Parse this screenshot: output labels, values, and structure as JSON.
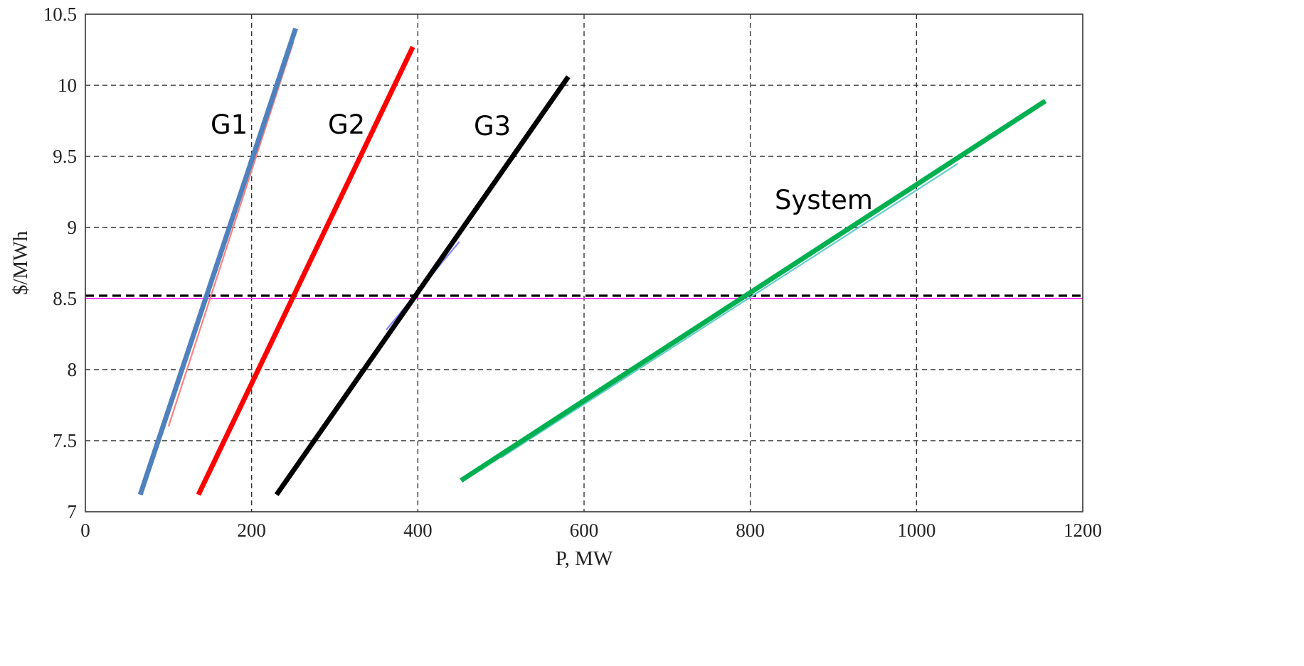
{
  "chart_data": {
    "type": "line",
    "title": "",
    "xlabel": "P, MW",
    "ylabel": "$/MWh",
    "xlim": [
      0,
      1200
    ],
    "ylim": [
      7,
      10.5
    ],
    "xticks": [
      0,
      200,
      400,
      600,
      800,
      1000,
      1200
    ],
    "yticks": [
      7,
      7.5,
      8,
      8.5,
      9,
      9.5,
      10,
      10.5
    ],
    "xtick_labels": [
      "0",
      "200",
      "400",
      "600",
      "800",
      "1000",
      "1200"
    ],
    "ytick_labels": [
      "7",
      "7.5",
      "8",
      "8.5",
      "9",
      "9.5",
      "10",
      "10.5"
    ],
    "grid": true,
    "series": [
      {
        "name": "G1",
        "color": "#4F81BD",
        "x": [
          66,
          253
        ],
        "y": [
          7.12,
          10.4
        ]
      },
      {
        "name": "G2",
        "color": "#FF0000",
        "x": [
          136,
          394
        ],
        "y": [
          7.12,
          10.27
        ]
      },
      {
        "name": "G3",
        "color": "#000000",
        "x": [
          230,
          581
        ],
        "y": [
          7.12,
          10.06
        ]
      },
      {
        "name": "System",
        "color": "#00B050",
        "x": [
          452,
          1155
        ],
        "y": [
          7.22,
          9.89
        ]
      }
    ],
    "reference_lines": [
      {
        "y": 8.5,
        "color": "#000000",
        "style": "dashed"
      },
      {
        "y": 8.5,
        "color": "#FF44FF",
        "style": "solid"
      }
    ],
    "overlay_curves": [
      {
        "color": "#FF8080",
        "x": [
          100,
          250
        ],
        "y": [
          7.6,
          10.3
        ]
      },
      {
        "color": "#8888FF",
        "x": [
          362,
          450
        ],
        "y": [
          8.28,
          8.9
        ]
      },
      {
        "color": "#66CCCC",
        "x": [
          500,
          1050
        ],
        "y": [
          7.38,
          9.45
        ]
      }
    ]
  }
}
